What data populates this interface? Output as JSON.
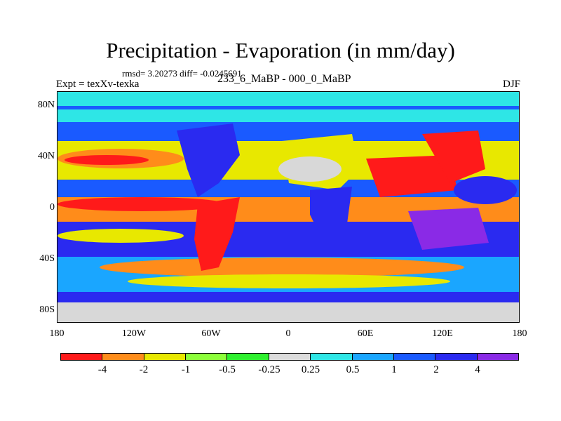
{
  "title": "Precipitation - Evaporation (in mm/day)",
  "stats": "rmsd= 3.20273 diff= -0.0245691",
  "experiment": "Expt = texXv-texka",
  "period": "233_6_MaBP - 000_0_MaBP",
  "season": "DJF",
  "y_ticks": [
    "80N",
    "40N",
    "0",
    "40S",
    "80S"
  ],
  "x_ticks": [
    "180",
    "120W",
    "60W",
    "0",
    "60E",
    "120E",
    "180"
  ],
  "colorbar": {
    "colors": [
      "#ff1a1a",
      "#ff8c1a",
      "#e8e800",
      "#8cff3a",
      "#2ef02e",
      "#dcdcdc",
      "#2ee6e6",
      "#1aa6ff",
      "#1a5aff",
      "#2a2af0",
      "#8a2ae6"
    ],
    "labels": [
      "-4",
      "-2",
      "-1",
      "-0.5",
      "-0.25",
      "0.25",
      "0.5",
      "1",
      "2",
      "4"
    ]
  }
}
